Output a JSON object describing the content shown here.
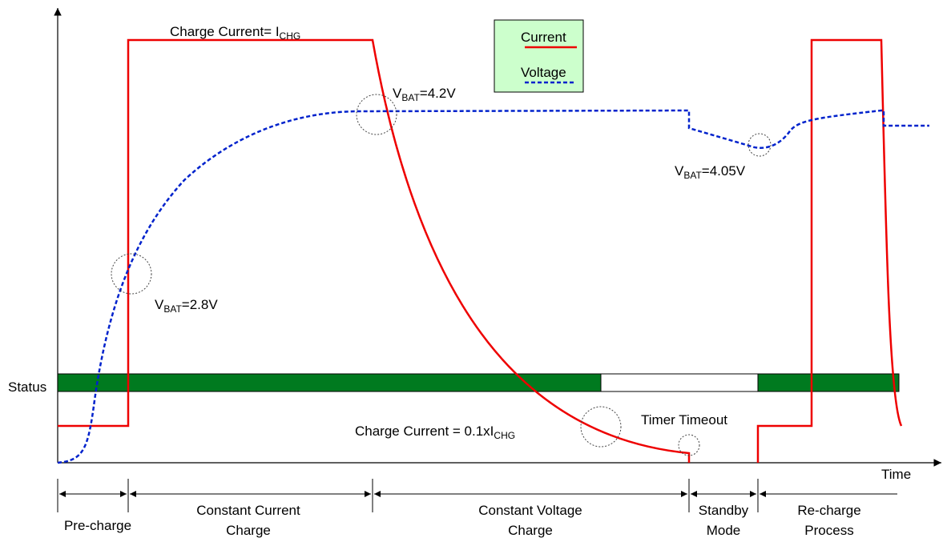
{
  "axes": {
    "status_label": "Status",
    "time_label": "Time"
  },
  "legend": {
    "current": "Current",
    "voltage": "Voltage"
  },
  "annotations": {
    "charge_current": {
      "text": "Charge Current= I",
      "sub": "CHG"
    },
    "vbat_42": {
      "main": "V",
      "sub": "BAT",
      "rest": "=4.2V"
    },
    "vbat_405": {
      "main": "V",
      "sub": "BAT",
      "rest": "=4.05V"
    },
    "vbat_28": {
      "main": "V",
      "sub": "BAT",
      "rest": "=2.8V"
    },
    "charge_current_low": {
      "text": "Charge Current = 0.1xI",
      "sub": "CHG"
    },
    "timer_timeout": "Timer Timeout"
  },
  "phases": [
    {
      "lines": [
        "Pre-charge"
      ]
    },
    {
      "lines": [
        "Constant Current",
        "Charge"
      ]
    },
    {
      "lines": [
        "Constant Voltage",
        "Charge"
      ]
    },
    {
      "lines": [
        "Standby",
        "Mode"
      ]
    },
    {
      "lines": [
        "Re-charge",
        "Process"
      ]
    }
  ]
}
